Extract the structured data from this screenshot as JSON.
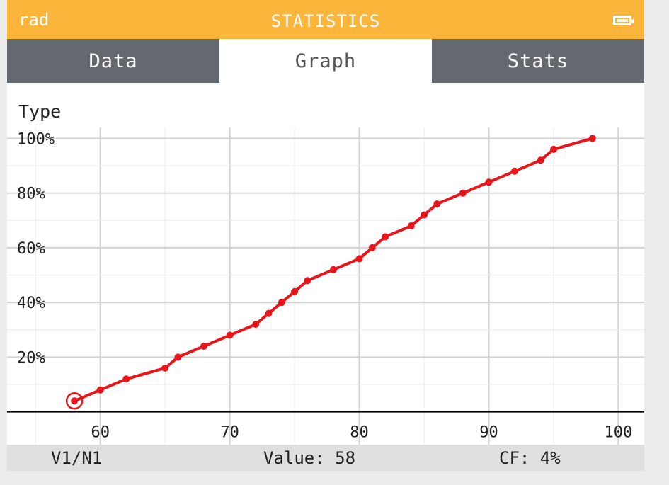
{
  "topbar": {
    "mode": "rad",
    "title": "STATISTICS",
    "battery_icon": "battery-icon"
  },
  "tabs": [
    {
      "label": "Data",
      "active": false
    },
    {
      "label": "Graph",
      "active": true
    },
    {
      "label": "Stats",
      "active": false
    }
  ],
  "graph": {
    "type_label": "Type"
  },
  "status": {
    "series": "V1/N1",
    "value": "Value: 58",
    "cf": "CF: 4%"
  },
  "colors": {
    "accent": "#fbb53a",
    "tab_bar": "#646970",
    "curve": "#e8141a"
  },
  "chart_data": {
    "type": "line",
    "x": [
      58,
      60,
      62,
      65,
      66,
      68,
      70,
      72,
      73,
      74,
      75,
      76,
      78,
      80,
      81,
      82,
      84,
      85,
      86,
      88,
      90,
      92,
      94,
      95,
      98
    ],
    "y": [
      4,
      8,
      12,
      16,
      20,
      24,
      28,
      32,
      36,
      40,
      44,
      48,
      52,
      56,
      60,
      64,
      68,
      72,
      76,
      80,
      84,
      88,
      92,
      96,
      100
    ],
    "x_ticks": [
      "60",
      "70",
      "80",
      "90",
      "100"
    ],
    "y_ticks": [
      "20%",
      "40%",
      "60%",
      "80%",
      "100%"
    ],
    "xlim": [
      52.8,
      102
    ],
    "ylim": [
      -12,
      104
    ],
    "grid": true,
    "selected_point": {
      "x": 58,
      "y": 4
    }
  }
}
